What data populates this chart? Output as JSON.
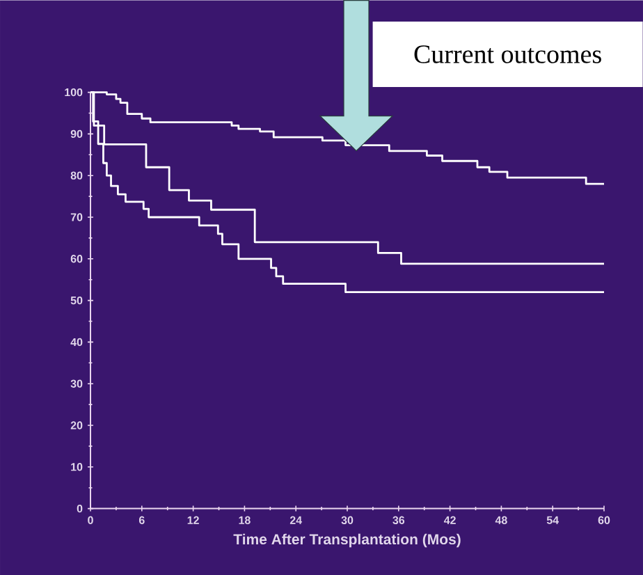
{
  "chart_data": {
    "type": "step",
    "xlabel": "Time After Transplantation (Mos)",
    "xlim": [
      0,
      60
    ],
    "xticks": [
      0,
      6,
      12,
      18,
      24,
      30,
      36,
      42,
      48,
      54,
      60
    ],
    "ylim": [
      0,
      100
    ],
    "yticks": [
      0,
      10,
      20,
      30,
      40,
      50,
      60,
      70,
      80,
      90,
      100
    ],
    "grid": false,
    "marker": "none",
    "line_style": "solid",
    "annotations": [
      "Current outcomes"
    ],
    "series": [
      {
        "color": "#ffffff",
        "x": [
          0,
          1.9,
          3,
          3.5,
          4.3,
          6,
          7,
          16.5,
          17.3,
          19.8,
          21.4,
          27.1,
          29.8,
          34.9,
          39.3,
          41.1,
          45.2,
          46.6,
          48.7,
          57.9,
          60
        ],
        "values": [
          100,
          99.5,
          98.4,
          97.5,
          94.8,
          93.7,
          92.8,
          92,
          91.2,
          90.6,
          89.2,
          88.4,
          87.3,
          85.9,
          84.8,
          83.5,
          82,
          80.9,
          79.5,
          78,
          78
        ]
      },
      {
        "color": "#ffffff",
        "x": [
          0,
          0.4,
          1.6,
          6.5,
          9.2,
          11.5,
          14.1,
          19.2,
          33.6,
          36.3,
          60
        ],
        "values": [
          100,
          92,
          87.5,
          82,
          76.5,
          74,
          71.8,
          64,
          61.4,
          58.8,
          58.8
        ]
      },
      {
        "color": "#ffffff",
        "x": [
          0,
          0.3,
          0.9,
          1.5,
          1.9,
          2.4,
          3.2,
          4.1,
          6.2,
          6.8,
          12.7,
          14.9,
          15.4,
          17.3,
          21.1,
          21.7,
          22.5,
          29.8,
          60
        ],
        "values": [
          100,
          93,
          87.6,
          83,
          80,
          77.5,
          75.5,
          73.7,
          72,
          70,
          68,
          66,
          63.5,
          60,
          57.8,
          55.8,
          54,
          52,
          52
        ]
      }
    ]
  }
}
